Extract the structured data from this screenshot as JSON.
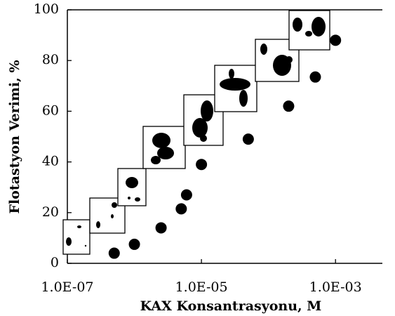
{
  "chart_data": {
    "type": "scatter",
    "x_label": "KAX Konsantrasyonu, M",
    "y_label": "Flotastyon Verimi, %",
    "x": [
      5e-07,
      1e-06,
      2.5e-06,
      5e-06,
      6e-06,
      1e-05,
      5e-05,
      0.0002,
      0.0005,
      0.001
    ],
    "values": [
      4,
      7.5,
      14,
      21.5,
      27,
      39,
      49,
      62,
      73.5,
      88
    ],
    "color": "#000000",
    "xscale": "log",
    "xlim": [
      1e-07,
      0.005
    ],
    "xticks": [
      {
        "value": 1e-07,
        "label": "1.0E-07"
      },
      {
        "value": 1e-05,
        "label": "1.0E-05"
      },
      {
        "value": 0.001,
        "label": "1.0E-03"
      }
    ],
    "ylim": [
      0,
      100
    ],
    "yticks": [
      0,
      20,
      40,
      60,
      80,
      100
    ]
  }
}
